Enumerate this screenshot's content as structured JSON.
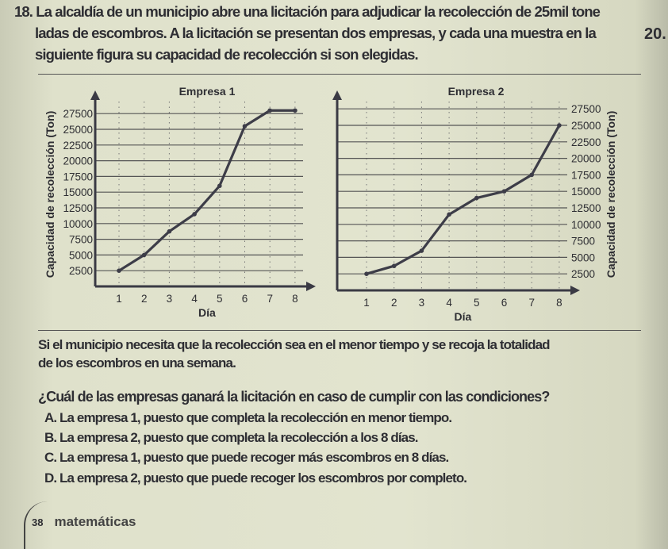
{
  "problem": {
    "number": "18.",
    "intro_lines": [
      "La alcaldía de un municipio abre una licitación para adjudicar la recolección de 25mil tone",
      "ladas de escombros. A la licitación se presentan dos empresas, y cada una muestra en la",
      "siguiente figura su capacidad de recolección si son elegidas."
    ],
    "side_number": "20.",
    "condition_lines": [
      "Si el municipio necesita que la recolección sea en el menor tiempo y se recoja la totalidad",
      "de los escombros en una semana."
    ],
    "question": "¿Cuál de las empresas ganará la licitación en caso de cumplir con las condiciones?",
    "options": [
      {
        "letter": "A.",
        "text": "La empresa 1, puesto que completa la recolección en menor tiempo."
      },
      {
        "letter": "B.",
        "text": "La empresa 2, puesto que completa la recolección a los 8 días."
      },
      {
        "letter": "C.",
        "text": "La empresa 1, puesto que puede recoger más escombros en 8 días."
      },
      {
        "letter": "D.",
        "text": "La empresa 2, puesto que puede recoger los escombros por completo."
      }
    ]
  },
  "footer": {
    "page": "38",
    "book": "matemáticas"
  },
  "chart_data": [
    {
      "type": "line",
      "title": "Empresa 1",
      "xlabel": "Día",
      "ylabel": "Capacidad de recolección (Ton)",
      "x": [
        1,
        2,
        3,
        4,
        5,
        6,
        7,
        8
      ],
      "values": [
        2500,
        5000,
        8750,
        11500,
        16000,
        25500,
        28000,
        28000
      ],
      "yticks": [
        2500,
        5000,
        7500,
        10000,
        12500,
        15000,
        17500,
        20000,
        22500,
        25000,
        27500
      ],
      "ylim": [
        0,
        30000
      ],
      "xlim": [
        0,
        8.5
      ],
      "y_axis_side": "left",
      "grid": true
    },
    {
      "type": "line",
      "title": "Empresa 2",
      "xlabel": "Día",
      "ylabel": "Capacidad de recolección (Ton)",
      "x": [
        1,
        2,
        3,
        4,
        5,
        6,
        7,
        8
      ],
      "values": [
        2500,
        3700,
        6000,
        11500,
        14000,
        15000,
        17500,
        25000
      ],
      "yticks": [
        2500,
        5000,
        7500,
        10000,
        12500,
        15000,
        17500,
        20000,
        22500,
        25000,
        27500
      ],
      "ylim": [
        0,
        30000
      ],
      "xlim": [
        0,
        8.5
      ],
      "y_axis_side": "right",
      "grid": true
    }
  ]
}
